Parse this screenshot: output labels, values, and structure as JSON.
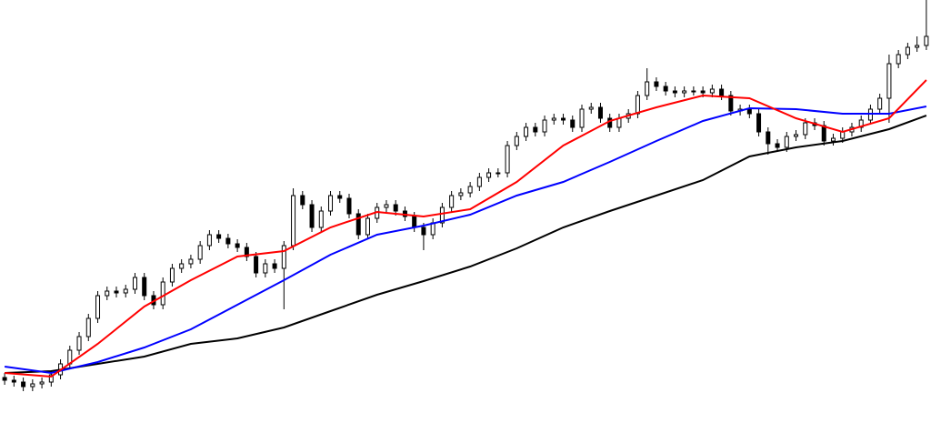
{
  "chart_data": {
    "type": "candlestick",
    "xlim": [
      -0.5,
      99.5
    ],
    "ylim": [
      0,
      465
    ],
    "up_color": "#ffffff",
    "down_color": "#000000",
    "wick_color": "#000000",
    "open": [
      50,
      47,
      45,
      40,
      43,
      45,
      53,
      65,
      80,
      95,
      115,
      140,
      145,
      143,
      147,
      160,
      140,
      130,
      155,
      170,
      175,
      180,
      195,
      207,
      203,
      197,
      193,
      183,
      165,
      175,
      170,
      195,
      250,
      240,
      215,
      233,
      250,
      247,
      230,
      207,
      225,
      237,
      240,
      233,
      227,
      215,
      207,
      220,
      237,
      250,
      253,
      260,
      270,
      275,
      275,
      305,
      315,
      325,
      320,
      333,
      335,
      333,
      325,
      345,
      347,
      335,
      325,
      335,
      340,
      360,
      375,
      370,
      365,
      363,
      365,
      365,
      363,
      367,
      360,
      343,
      345,
      340,
      320,
      307,
      303,
      315,
      317,
      330,
      327,
      310,
      313,
      320,
      325,
      333,
      345,
      357,
      395,
      405,
      413,
      415
    ],
    "high": [
      55,
      52,
      50,
      48,
      50,
      58,
      70,
      85,
      100,
      120,
      145,
      150,
      150,
      152,
      165,
      165,
      145,
      160,
      175,
      180,
      185,
      200,
      212,
      212,
      208,
      202,
      198,
      188,
      180,
      180,
      200,
      258,
      255,
      245,
      238,
      255,
      255,
      252,
      235,
      230,
      242,
      245,
      245,
      238,
      232,
      220,
      225,
      242,
      255,
      258,
      265,
      275,
      280,
      280,
      310,
      320,
      330,
      330,
      338,
      340,
      340,
      338,
      350,
      352,
      352,
      340,
      340,
      345,
      365,
      390,
      380,
      375,
      370,
      370,
      370,
      370,
      372,
      372,
      365,
      350,
      350,
      345,
      325,
      312,
      320,
      322,
      335,
      335,
      332,
      318,
      325,
      330,
      338,
      350,
      362,
      405,
      410,
      418,
      425,
      465
    ],
    "low": [
      42,
      40,
      35,
      35,
      38,
      40,
      48,
      60,
      75,
      90,
      110,
      135,
      138,
      138,
      142,
      135,
      125,
      125,
      150,
      165,
      170,
      175,
      190,
      198,
      192,
      188,
      178,
      160,
      160,
      165,
      125,
      190,
      235,
      210,
      210,
      228,
      242,
      225,
      202,
      202,
      220,
      232,
      228,
      222,
      210,
      190,
      202,
      215,
      232,
      245,
      248,
      255,
      265,
      270,
      270,
      300,
      310,
      315,
      315,
      328,
      328,
      320,
      320,
      340,
      330,
      320,
      320,
      330,
      335,
      355,
      365,
      360,
      358,
      358,
      360,
      358,
      358,
      355,
      338,
      338,
      335,
      315,
      295,
      298,
      298,
      310,
      312,
      322,
      305,
      305,
      308,
      315,
      320,
      328,
      340,
      330,
      390,
      400,
      408,
      410
    ],
    "close": [
      47,
      45,
      40,
      43,
      45,
      53,
      65,
      80,
      95,
      115,
      140,
      145,
      143,
      147,
      160,
      140,
      130,
      155,
      170,
      175,
      180,
      195,
      207,
      203,
      197,
      193,
      183,
      165,
      175,
      170,
      195,
      250,
      240,
      215,
      233,
      250,
      247,
      230,
      207,
      225,
      237,
      240,
      233,
      227,
      215,
      207,
      220,
      237,
      250,
      253,
      260,
      270,
      275,
      275,
      305,
      315,
      325,
      320,
      333,
      335,
      333,
      325,
      345,
      347,
      335,
      325,
      335,
      340,
      360,
      375,
      370,
      365,
      363,
      365,
      365,
      363,
      367,
      360,
      343,
      345,
      340,
      320,
      307,
      303,
      315,
      317,
      330,
      327,
      310,
      313,
      320,
      325,
      333,
      345,
      357,
      395,
      405,
      413,
      415,
      425
    ],
    "series": [
      {
        "color": "#000000",
        "x": [
          0,
          5,
          10,
          15,
          20,
          25,
          30,
          35,
          40,
          45,
          50,
          55,
          60,
          65,
          70,
          75,
          80,
          85,
          90,
          95,
          99
        ],
        "values": [
          55,
          57,
          65,
          73,
          87,
          93,
          105,
          123,
          141,
          156,
          172,
          192,
          215,
          233,
          250,
          267,
          293,
          303,
          310,
          323,
          338
        ]
      },
      {
        "color": "#0000ff",
        "x": [
          0,
          5,
          10,
          15,
          20,
          25,
          30,
          35,
          40,
          45,
          50,
          55,
          60,
          65,
          70,
          75,
          80,
          85,
          90,
          95,
          99
        ],
        "values": [
          62,
          55,
          67,
          83,
          103,
          130,
          157,
          185,
          207,
          217,
          229,
          250,
          265,
          287,
          310,
          332,
          346,
          345,
          340,
          340,
          348
        ]
      },
      {
        "color": "#ff0000",
        "x": [
          0,
          5,
          10,
          15,
          20,
          25,
          30,
          35,
          40,
          45,
          50,
          55,
          60,
          65,
          70,
          75,
          80,
          85,
          90,
          95,
          99
        ],
        "values": [
          55,
          51,
          87,
          128,
          157,
          183,
          189,
          215,
          232,
          227,
          235,
          265,
          305,
          332,
          347,
          360,
          357,
          335,
          320,
          335,
          377
        ]
      }
    ]
  }
}
